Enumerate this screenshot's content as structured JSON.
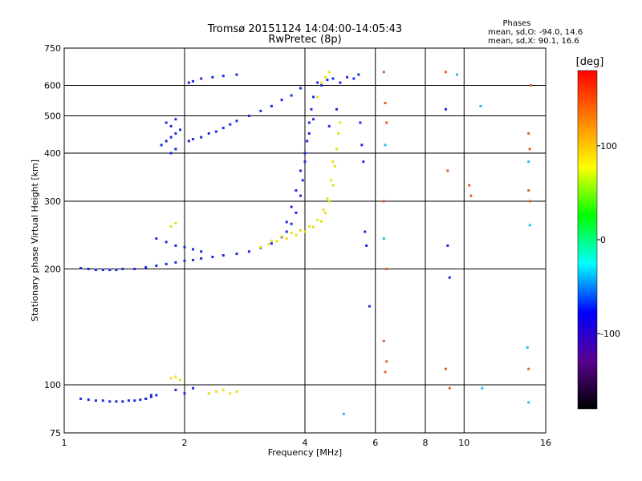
{
  "chart_data": {
    "type": "scatter",
    "title": "Tromsø 20151124 14:04:00-14:05:43",
    "subtitle": "RwPretec (8p)",
    "xlabel": "Frequency [MHz]",
    "ylabel": "Stationary phase Virtual Height [km]",
    "x_scale": "log",
    "y_scale": "log",
    "xlim": [
      1,
      16
    ],
    "ylim": [
      75,
      750
    ],
    "x_ticks": [
      1,
      2,
      4,
      6,
      8,
      10,
      16
    ],
    "x_tick_labels": [
      "1",
      "2",
      "4",
      "6",
      "8",
      "10",
      "16"
    ],
    "y_ticks": [
      75,
      100,
      200,
      300,
      400,
      500,
      600,
      750
    ],
    "y_tick_labels": [
      "75",
      "100",
      "200",
      "300",
      "400",
      "500",
      "600",
      "750"
    ],
    "x_grid": [
      2,
      4,
      6,
      8,
      10
    ],
    "y_grid": [
      100,
      200,
      300,
      400,
      500,
      600
    ],
    "grid": true,
    "stats": {
      "heading": "Phases",
      "line_o": "mean, sd,O:  -94.0, 14.6",
      "line_x": "mean, sd,X:  90.1, 16.6"
    },
    "colorbar": {
      "label": "[deg]",
      "range": [
        -180,
        180
      ],
      "ticks": [
        100,
        0,
        -100
      ],
      "tick_labels": [
        "100",
        "0",
        "-100"
      ],
      "stops": [
        "#000000",
        "#5a0090",
        "#0000ff",
        "#00ffff",
        "#00ff00",
        "#ffff00",
        "#ff8000",
        "#ff0000"
      ]
    },
    "series": [
      {
        "points": [
          [
            1.1,
            92
          ],
          [
            1.15,
            91.5
          ],
          [
            1.2,
            91
          ],
          [
            1.25,
            91
          ],
          [
            1.3,
            90.5
          ],
          [
            1.35,
            90.5
          ],
          [
            1.4,
            90.5
          ],
          [
            1.45,
            91
          ],
          [
            1.5,
            91
          ],
          [
            1.55,
            91.5
          ],
          [
            1.6,
            92
          ],
          [
            1.65,
            93
          ],
          [
            1.7,
            94
          ],
          [
            1.1,
            201
          ],
          [
            1.15,
            200
          ],
          [
            1.2,
            199
          ],
          [
            1.25,
            199
          ],
          [
            1.3,
            199
          ],
          [
            1.35,
            199
          ],
          [
            1.4,
            200
          ],
          [
            1.5,
            200
          ],
          [
            1.6,
            202
          ],
          [
            1.7,
            204
          ],
          [
            1.8,
            206
          ],
          [
            1.9,
            208
          ],
          [
            2.0,
            210
          ],
          [
            2.1,
            211
          ],
          [
            2.2,
            213
          ],
          [
            2.35,
            215
          ],
          [
            2.5,
            217
          ],
          [
            2.7,
            219
          ],
          [
            2.9,
            222
          ],
          [
            3.1,
            227
          ],
          [
            3.3,
            233
          ],
          [
            3.5,
            242
          ],
          [
            3.6,
            250
          ],
          [
            3.7,
            262
          ],
          [
            3.8,
            280
          ],
          [
            3.9,
            310
          ],
          [
            3.95,
            340
          ],
          [
            4.0,
            380
          ],
          [
            4.05,
            430
          ],
          [
            4.1,
            480
          ],
          [
            4.15,
            520
          ],
          [
            4.2,
            560
          ],
          [
            3.6,
            265
          ],
          [
            3.7,
            290
          ],
          [
            3.8,
            320
          ],
          [
            3.9,
            360
          ],
          [
            4.0,
            400
          ],
          [
            4.1,
            450
          ],
          [
            4.2,
            490
          ],
          [
            1.75,
            420
          ],
          [
            1.8,
            430
          ],
          [
            1.85,
            440
          ],
          [
            1.9,
            450
          ],
          [
            1.85,
            470
          ],
          [
            1.9,
            490
          ],
          [
            1.8,
            480
          ],
          [
            1.95,
            460
          ],
          [
            1.9,
            410
          ],
          [
            1.85,
            400
          ],
          [
            2.05,
            430
          ],
          [
            2.1,
            435
          ],
          [
            2.2,
            440
          ],
          [
            2.3,
            450
          ],
          [
            2.4,
            455
          ],
          [
            2.5,
            465
          ],
          [
            2.6,
            475
          ],
          [
            2.7,
            485
          ],
          [
            2.9,
            500
          ],
          [
            3.1,
            515
          ],
          [
            3.3,
            530
          ],
          [
            3.5,
            550
          ],
          [
            3.7,
            565
          ],
          [
            3.9,
            590
          ],
          [
            2.05,
            610
          ],
          [
            2.1,
            615
          ],
          [
            2.2,
            625
          ],
          [
            2.35,
            630
          ],
          [
            2.5,
            635
          ],
          [
            2.7,
            640
          ],
          [
            4.3,
            610
          ],
          [
            4.4,
            600
          ],
          [
            4.55,
            620
          ],
          [
            4.7,
            625
          ],
          [
            4.9,
            610
          ],
          [
            5.1,
            630
          ],
          [
            5.3,
            625
          ],
          [
            1.7,
            240
          ],
          [
            1.8,
            235
          ],
          [
            1.9,
            230
          ],
          [
            2.0,
            228
          ],
          [
            2.1,
            225
          ],
          [
            2.2,
            222
          ],
          [
            5.45,
            640
          ],
          [
            5.5,
            480
          ],
          [
            5.55,
            420
          ],
          [
            5.6,
            380
          ],
          [
            5.65,
            250
          ],
          [
            5.7,
            230
          ],
          [
            5.8,
            160
          ],
          [
            9.0,
            520
          ],
          [
            9.1,
            230
          ],
          [
            9.2,
            190
          ],
          [
            4.8,
            520
          ],
          [
            4.6,
            470
          ],
          [
            1.6,
            92
          ],
          [
            1.65,
            94
          ],
          [
            1.9,
            97
          ],
          [
            2.0,
            95
          ],
          [
            2.1,
            98
          ]
        ]
      },
      {
        "points": [
          [
            3.1,
            228
          ],
          [
            3.25,
            232
          ],
          [
            3.4,
            236
          ],
          [
            3.6,
            240
          ],
          [
            3.8,
            245
          ],
          [
            4.0,
            250
          ],
          [
            4.2,
            257
          ],
          [
            4.4,
            266
          ],
          [
            4.5,
            280
          ],
          [
            4.6,
            300
          ],
          [
            4.7,
            330
          ],
          [
            4.75,
            370
          ],
          [
            4.8,
            410
          ],
          [
            4.85,
            450
          ],
          [
            4.9,
            480
          ],
          [
            3.3,
            237
          ],
          [
            3.5,
            243
          ],
          [
            3.7,
            248
          ],
          [
            3.9,
            252
          ],
          [
            4.1,
            258
          ],
          [
            4.3,
            268
          ],
          [
            4.45,
            285
          ],
          [
            4.55,
            305
          ],
          [
            4.65,
            340
          ],
          [
            4.7,
            380
          ],
          [
            4.3,
            560
          ],
          [
            4.4,
            610
          ],
          [
            4.5,
            630
          ],
          [
            4.6,
            650
          ],
          [
            2.3,
            95
          ],
          [
            2.4,
            96
          ],
          [
            2.5,
            97
          ],
          [
            2.6,
            95
          ],
          [
            2.7,
            96
          ],
          [
            1.85,
            104
          ],
          [
            1.9,
            105
          ],
          [
            1.95,
            103
          ],
          [
            1.9,
            263
          ],
          [
            1.85,
            258
          ]
        ]
      },
      {
        "points": [
          [
            6.3,
            650
          ],
          [
            6.35,
            540
          ],
          [
            6.4,
            480
          ],
          [
            6.3,
            300
          ],
          [
            6.4,
            200
          ],
          [
            6.3,
            130
          ],
          [
            6.4,
            115
          ],
          [
            6.35,
            108
          ],
          [
            9.0,
            650
          ],
          [
            9.1,
            360
          ],
          [
            9.0,
            110
          ],
          [
            9.2,
            98
          ],
          [
            10.3,
            330
          ],
          [
            10.4,
            310
          ],
          [
            14.5,
            450
          ],
          [
            14.6,
            410
          ],
          [
            14.5,
            320
          ],
          [
            14.6,
            300
          ],
          [
            14.7,
            600
          ],
          [
            14.5,
            110
          ]
        ]
      },
      {
        "points": [
          [
            6.35,
            420
          ],
          [
            9.6,
            640
          ],
          [
            11.0,
            530
          ],
          [
            14.5,
            380
          ],
          [
            14.6,
            260
          ],
          [
            14.4,
            125
          ],
          [
            14.5,
            90
          ],
          [
            11.1,
            98
          ],
          [
            5.0,
            84
          ],
          [
            6.3,
            240
          ]
        ]
      }
    ]
  }
}
